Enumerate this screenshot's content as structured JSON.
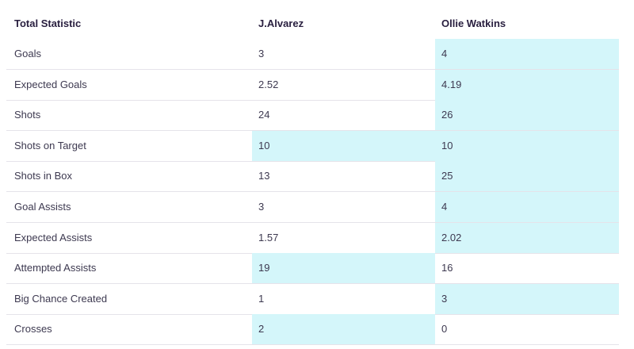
{
  "header": {
    "statistic_label": "Total Statistic",
    "player1": "J.Alvarez",
    "player2": "Ollie Watkins"
  },
  "colors": {
    "highlight": "#d4f6fa",
    "divider": "#e5e3ea",
    "text": "#3d3950"
  },
  "rows": [
    {
      "label": "Goals",
      "p1": "3",
      "p2": "4",
      "p1_highlight": false,
      "p2_highlight": true
    },
    {
      "label": "Expected Goals",
      "p1": "2.52",
      "p2": "4.19",
      "p1_highlight": false,
      "p2_highlight": true
    },
    {
      "label": "Shots",
      "p1": "24",
      "p2": "26",
      "p1_highlight": false,
      "p2_highlight": true
    },
    {
      "label": "Shots on Target",
      "p1": "10",
      "p2": "10",
      "p1_highlight": true,
      "p2_highlight": true
    },
    {
      "label": "Shots in Box",
      "p1": "13",
      "p2": "25",
      "p1_highlight": false,
      "p2_highlight": true
    },
    {
      "label": "Goal Assists",
      "p1": "3",
      "p2": "4",
      "p1_highlight": false,
      "p2_highlight": true
    },
    {
      "label": "Expected Assists",
      "p1": "1.57",
      "p2": "2.02",
      "p1_highlight": false,
      "p2_highlight": true
    },
    {
      "label": "Attempted Assists",
      "p1": "19",
      "p2": "16",
      "p1_highlight": true,
      "p2_highlight": false
    },
    {
      "label": "Big Chance Created",
      "p1": "1",
      "p2": "3",
      "p1_highlight": false,
      "p2_highlight": true
    },
    {
      "label": "Crosses",
      "p1": "2",
      "p2": "0",
      "p1_highlight": true,
      "p2_highlight": false
    }
  ]
}
